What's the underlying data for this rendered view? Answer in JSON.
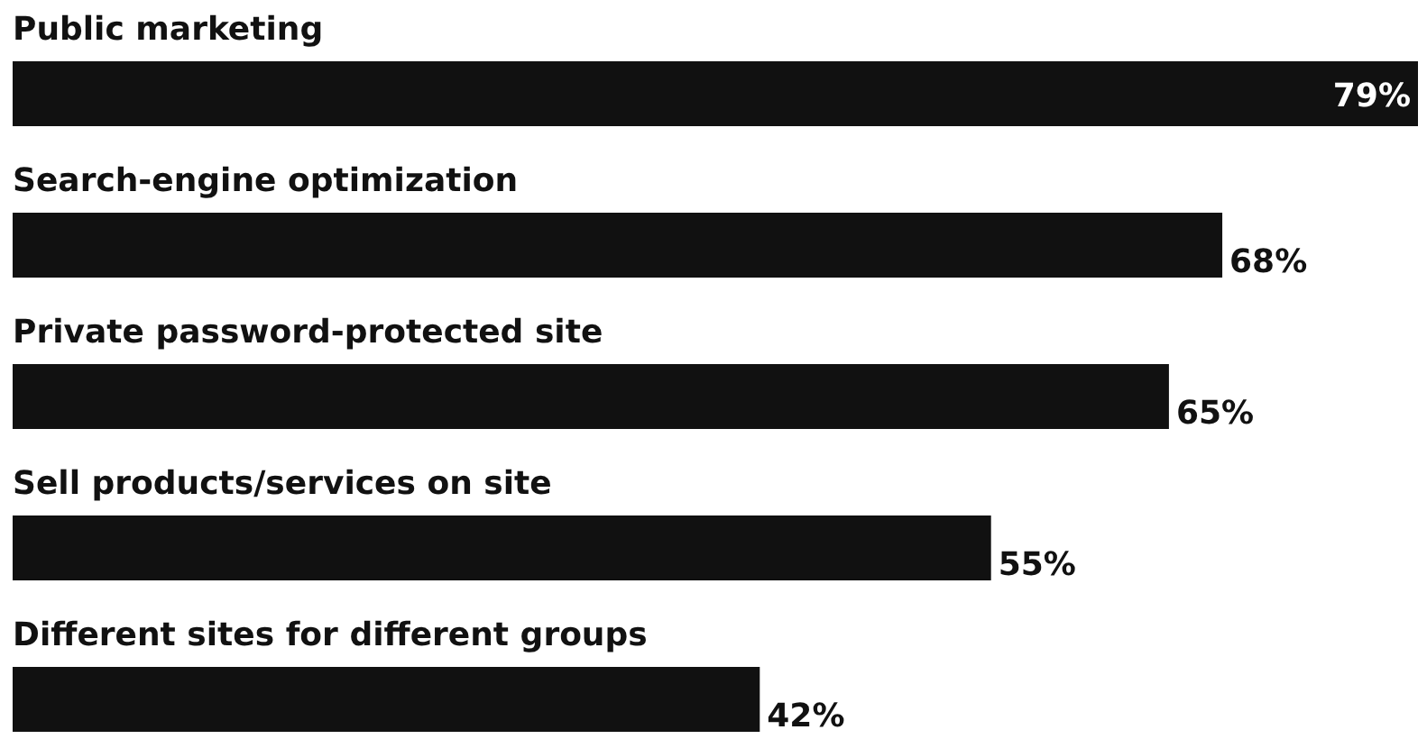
{
  "chart_data": {
    "type": "bar",
    "orientation": "horizontal",
    "categories": [
      "Public marketing",
      "Search-engine optimization",
      "Private password-protected site",
      "Sell products/services on site",
      "Different sites for different groups"
    ],
    "values": [
      79,
      68,
      65,
      55,
      42
    ],
    "color": "#111111",
    "data_labels": true,
    "value_labels": [
      "79%",
      "68%",
      "65%",
      "55%",
      "42%"
    ]
  }
}
